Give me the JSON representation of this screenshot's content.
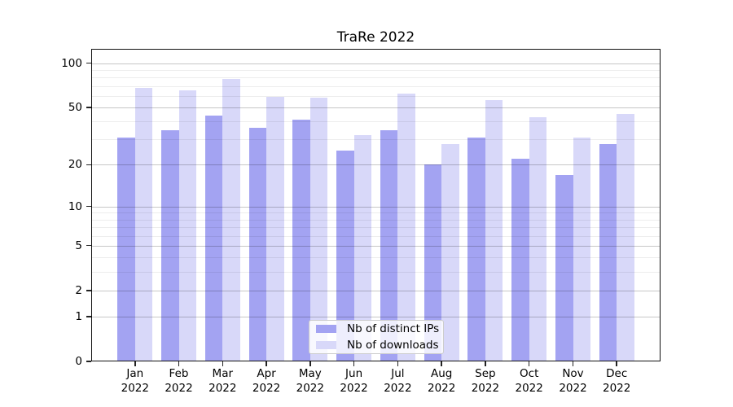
{
  "chart_data": {
    "type": "bar",
    "title": "TraRe 2022",
    "categories": [
      {
        "month": "Jan",
        "year": "2022"
      },
      {
        "month": "Feb",
        "year": "2022"
      },
      {
        "month": "Mar",
        "year": "2022"
      },
      {
        "month": "Apr",
        "year": "2022"
      },
      {
        "month": "May",
        "year": "2022"
      },
      {
        "month": "Jun",
        "year": "2022"
      },
      {
        "month": "Jul",
        "year": "2022"
      },
      {
        "month": "Aug",
        "year": "2022"
      },
      {
        "month": "Sep",
        "year": "2022"
      },
      {
        "month": "Oct",
        "year": "2022"
      },
      {
        "month": "Nov",
        "year": "2022"
      },
      {
        "month": "Dec",
        "year": "2022"
      }
    ],
    "series": [
      {
        "name": "Nb of distinct IPs",
        "color": "#a3a3f2",
        "values": [
          31,
          35,
          44,
          36,
          41,
          25,
          35,
          20,
          31,
          22,
          17,
          28
        ]
      },
      {
        "name": "Nb of downloads",
        "color": "#d8d8f9",
        "values": [
          68,
          65,
          78,
          59,
          58,
          32,
          62,
          28,
          56,
          43,
          31,
          45
        ]
      }
    ],
    "y_axis": {
      "scale": "log1p",
      "ylim": [
        0,
        125
      ],
      "major_ticks": [
        100,
        50,
        20,
        10,
        5,
        2,
        1,
        0
      ],
      "minor_ticks": [
        90,
        80,
        70,
        60,
        40,
        30,
        9,
        8,
        7,
        6,
        4,
        3
      ]
    },
    "grid": "on",
    "legend_position": "lower center",
    "colors": {
      "major_grid": "rgba(0,0,0,0.22)",
      "minor_grid": "rgba(0,0,0,0.07)",
      "spine": "#111111",
      "text": "#000000",
      "background": "#ffffff"
    }
  }
}
